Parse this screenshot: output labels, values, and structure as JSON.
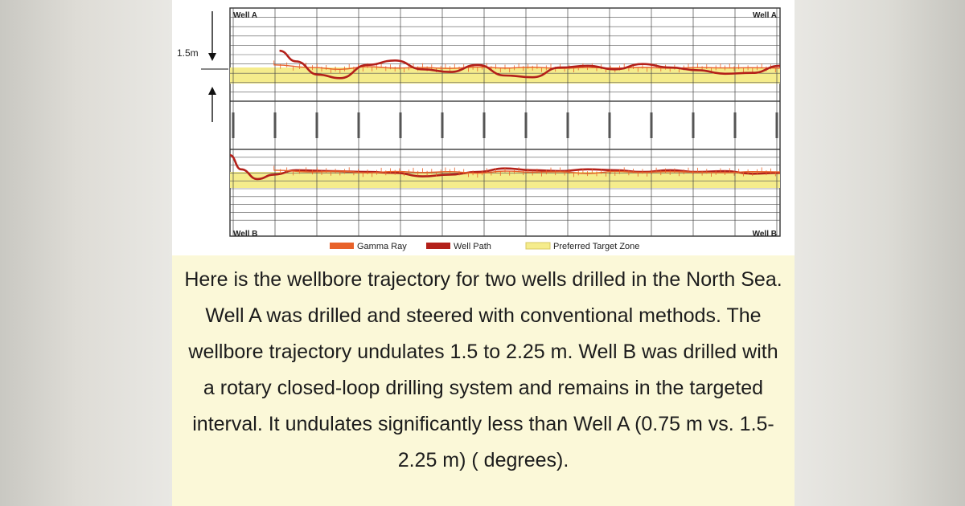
{
  "chart_data": {
    "type": "line",
    "panels": [
      {
        "corner_left": "Well A",
        "corner_right": "Well A",
        "scale_label": "1.5m",
        "series": [
          {
            "name": "Gamma Ray",
            "color": "#e8622a",
            "x": [
              0.08,
              0.15,
              0.2,
              0.25,
              0.3,
              0.35,
              0.4,
              0.45,
              0.5,
              0.55,
              0.6,
              0.65,
              0.7,
              0.75,
              0.8,
              0.85,
              0.9,
              0.95,
              1.0
            ],
            "y": [
              0.6,
              0.45,
              0.35,
              0.5,
              0.42,
              0.45,
              0.4,
              0.48,
              0.42,
              0.47,
              0.4,
              0.45,
              0.42,
              0.46,
              0.41,
              0.45,
              0.43,
              0.44,
              0.42
            ]
          },
          {
            "name": "Well Path",
            "color": "#b3201a",
            "x": [
              0.09,
              0.12,
              0.16,
              0.2,
              0.25,
              0.3,
              0.35,
              0.4,
              0.45,
              0.5,
              0.55,
              0.6,
              0.65,
              0.7,
              0.75,
              0.8,
              0.85,
              0.9,
              0.95,
              1.0
            ],
            "y": [
              1.4,
              0.8,
              0.05,
              -0.15,
              0.6,
              0.85,
              0.35,
              0.2,
              0.6,
              0.0,
              -0.1,
              0.45,
              0.55,
              0.35,
              0.65,
              0.45,
              0.3,
              0.1,
              0.15,
              0.55
            ]
          }
        ]
      },
      {
        "corner_left": "Well B",
        "corner_right": "Well B",
        "series": [
          {
            "name": "Well Path",
            "color": "#b3201a",
            "x": [
              0.0,
              0.02,
              0.05,
              0.08,
              0.12,
              0.18,
              0.25,
              0.3,
              0.35,
              0.4,
              0.45,
              0.5,
              0.55,
              0.6,
              0.65,
              0.7,
              0.75,
              0.8,
              0.85,
              0.9,
              0.95,
              1.0
            ],
            "y": [
              1.4,
              0.6,
              0.05,
              0.3,
              0.55,
              0.5,
              0.45,
              0.4,
              0.2,
              0.3,
              0.45,
              0.65,
              0.55,
              0.5,
              0.6,
              0.55,
              0.45,
              0.55,
              0.45,
              0.5,
              0.35,
              0.4
            ]
          },
          {
            "name": "Gamma Ray",
            "color": "#e8622a",
            "x": [
              0.08,
              0.15,
              0.2,
              0.25,
              0.3,
              0.35,
              0.4,
              0.45,
              0.5,
              0.55,
              0.6,
              0.65,
              0.7,
              0.75,
              0.8,
              0.85,
              0.9,
              0.95,
              1.0
            ],
            "y": [
              0.55,
              0.45,
              0.5,
              0.4,
              0.48,
              0.42,
              0.47,
              0.38,
              0.5,
              0.44,
              0.46,
              0.36,
              0.48,
              0.43,
              0.47,
              0.44,
              0.41,
              0.47,
              0.45
            ]
          }
        ]
      }
    ],
    "legend": [
      {
        "label": "Gamma Ray",
        "color": "#e8622a"
      },
      {
        "label": "Well Path",
        "color": "#b3201a"
      },
      {
        "label": "Preferred Target Zone",
        "color": "#f5ec8c"
      }
    ],
    "legend_position": "bottom",
    "grid": true,
    "middle_tick_count": 14
  },
  "caption": "Here is the wellbore trajectory for two wells drilled in the North Sea. Well A was drilled and steered with conventional methods. The wellbore trajectory undulates 1.5 to 2.25 m. Well B was drilled with a rotary closed-loop drilling system and remains in the targeted interval. It undulates significantly less than Well A (0.75 m vs. 1.5-2.25 m) ( degrees)."
}
